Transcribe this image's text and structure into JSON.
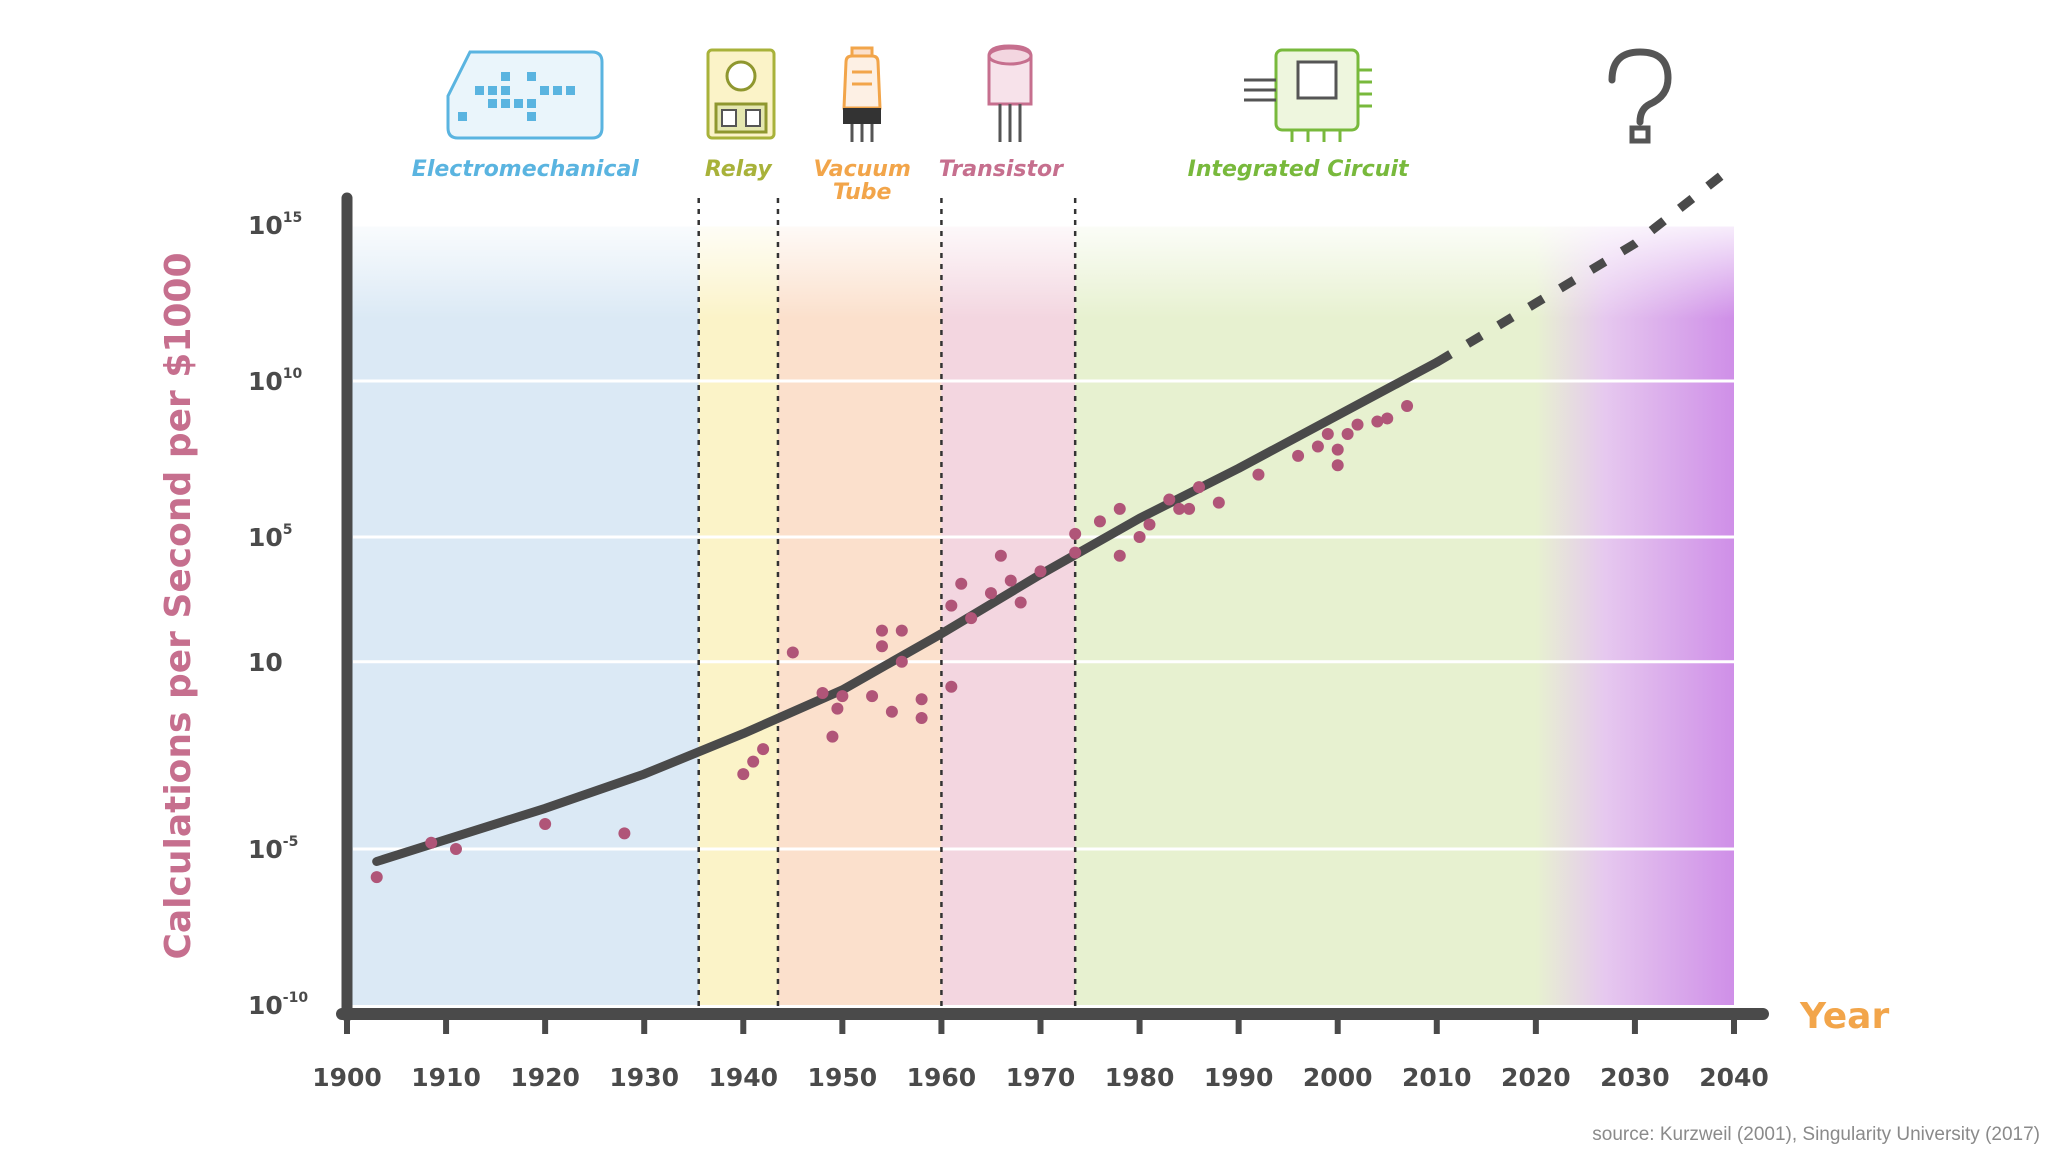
{
  "chart_data": {
    "type": "scatter",
    "xlabel": "Year",
    "ylabel": "Calculations per Second per $1000",
    "source": "source: Kurzweil (2001), Singularity University (2017)",
    "y_scale": "log10",
    "xlim": [
      1900,
      2040
    ],
    "ylim": [
      -10,
      15
    ],
    "x_ticks": [
      "1900",
      "1910",
      "1920",
      "1930",
      "1940",
      "1950",
      "1960",
      "1970",
      "1980",
      "1990",
      "2000",
      "2010",
      "2020",
      "2030",
      "2040"
    ],
    "y_ticks": [
      {
        "base": "10",
        "exp": "-10",
        "value": -10
      },
      {
        "base": "10",
        "exp": "-5",
        "value": -5
      },
      {
        "base": "10",
        "exp": "",
        "value": 1
      },
      {
        "base": "10",
        "exp": "5",
        "value": 5
      },
      {
        "base": "10",
        "exp": "10",
        "value": 10
      },
      {
        "base": "10",
        "exp": "15",
        "value": 15
      }
    ],
    "eras": [
      {
        "label": "Electromechanical",
        "start": 1900,
        "end": 1935.5,
        "label_x": 1918,
        "icon": "electromechanical-icon",
        "color": "#5ab4e0",
        "fill": "#dbe9f5"
      },
      {
        "label": "Relay",
        "start": 1935.5,
        "end": 1943.5,
        "label_x": 1939.5,
        "icon": "relay-icon",
        "color": "#a8b23a",
        "fill": "#fbf3c8"
      },
      {
        "label": "Vacuum\nTube",
        "start": 1943.5,
        "end": 1960,
        "label_x": 1952,
        "icon": "vacuum-tube-icon",
        "color": "#f2a54a",
        "fill": "#fbe0cc"
      },
      {
        "label": "Transistor",
        "start": 1960,
        "end": 1973.5,
        "label_x": 1966,
        "icon": "transistor-icon",
        "color": "#c66f8e",
        "fill": "#f3d6e0"
      },
      {
        "label": "Integrated Circuit",
        "start": 1973.5,
        "end": 2040,
        "label_x": 1996,
        "icon": "integrated-circuit-icon",
        "color": "#78b93c",
        "fill": "#e7f1d0"
      },
      {
        "label": "",
        "start": 2020,
        "end": 2040,
        "label_x": 2030,
        "icon": "question-mark-icon",
        "color": "#555555",
        "fill": "#cf8fe8"
      }
    ],
    "series": [
      {
        "type": "scatter",
        "color": "#b05578",
        "x": [
          1903,
          1908.5,
          1911,
          1920,
          1928,
          1940,
          1941,
          1942,
          1945,
          1948,
          1949,
          1949.5,
          1950,
          1953,
          1954,
          1954,
          1955,
          1956,
          1956,
          1958,
          1958,
          1961,
          1961,
          1962,
          1963,
          1965,
          1966,
          1967,
          1968,
          1970,
          1973.5,
          1973.5,
          1976,
          1978,
          1978,
          1980,
          1981,
          1983,
          1984,
          1985,
          1986,
          1988,
          1992,
          1996,
          1998,
          1999,
          2000,
          2000,
          2001,
          2002,
          2004,
          2005,
          2007
        ],
        "y": [
          -5.9,
          -4.8,
          -5.0,
          -4.2,
          -4.5,
          -2.6,
          -2.2,
          -1.8,
          1.3,
          0.0,
          -1.4,
          -0.5,
          -0.1,
          -0.1,
          1.5,
          2.0,
          -0.6,
          2.0,
          1.0,
          -0.2,
          -0.8,
          2.8,
          0.2,
          3.5,
          2.4,
          3.2,
          4.4,
          3.6,
          2.9,
          3.9,
          4.5,
          5.1,
          5.5,
          4.4,
          5.9,
          5.0,
          5.4,
          6.2,
          5.9,
          5.9,
          6.6,
          6.1,
          7.0,
          7.6,
          7.9,
          8.3,
          7.3,
          7.8,
          8.3,
          8.6,
          8.7,
          8.8,
          9.2
        ]
      },
      {
        "type": "line",
        "name": "trend",
        "color": "#4a4a4a",
        "x": [
          1903,
          1910,
          1920,
          1930,
          1940,
          1950,
          1960,
          1970,
          1980,
          1990,
          2000,
          2010
        ],
        "y": [
          -5.4,
          -4.7,
          -3.7,
          -2.6,
          -1.3,
          0.1,
          1.9,
          3.8,
          5.6,
          7.2,
          8.9,
          10.6
        ]
      },
      {
        "type": "line",
        "name": "projection",
        "color": "#4a4a4a",
        "dashed": true,
        "x": [
          2010,
          2020,
          2030,
          2040
        ],
        "y": [
          10.6,
          12.5,
          14.4,
          16.9
        ]
      }
    ]
  }
}
